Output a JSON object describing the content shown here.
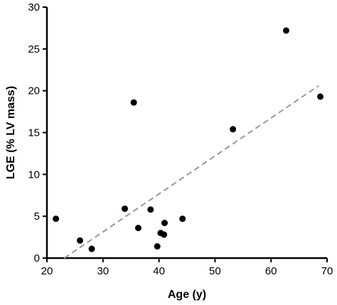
{
  "chart_data": {
    "type": "scatter",
    "xlabel": "Age (y)",
    "ylabel": "LGE (% LV mass)",
    "xlim": [
      20,
      70
    ],
    "ylim": [
      0,
      30
    ],
    "x_ticks": [
      20,
      30,
      40,
      50,
      60,
      70
    ],
    "y_ticks": [
      0,
      5,
      10,
      15,
      20,
      25,
      30
    ],
    "points": [
      {
        "x": 21.6,
        "y": 4.7
      },
      {
        "x": 25.9,
        "y": 2.1
      },
      {
        "x": 28.0,
        "y": 1.1
      },
      {
        "x": 33.9,
        "y": 5.9
      },
      {
        "x": 35.5,
        "y": 18.6
      },
      {
        "x": 36.3,
        "y": 3.6
      },
      {
        "x": 38.5,
        "y": 5.8
      },
      {
        "x": 39.7,
        "y": 1.4
      },
      {
        "x": 40.3,
        "y": 3.0
      },
      {
        "x": 40.9,
        "y": 2.8
      },
      {
        "x": 41.0,
        "y": 4.2
      },
      {
        "x": 44.2,
        "y": 4.7
      },
      {
        "x": 53.2,
        "y": 15.4
      },
      {
        "x": 62.7,
        "y": 27.2
      },
      {
        "x": 68.8,
        "y": 19.3
      }
    ],
    "trendline": {
      "style": "dashed",
      "color": "#9a9a9a",
      "x": [
        23.1,
        68.5
      ],
      "y": [
        0,
        20.6
      ]
    },
    "grid": false,
    "legend": "none"
  }
}
